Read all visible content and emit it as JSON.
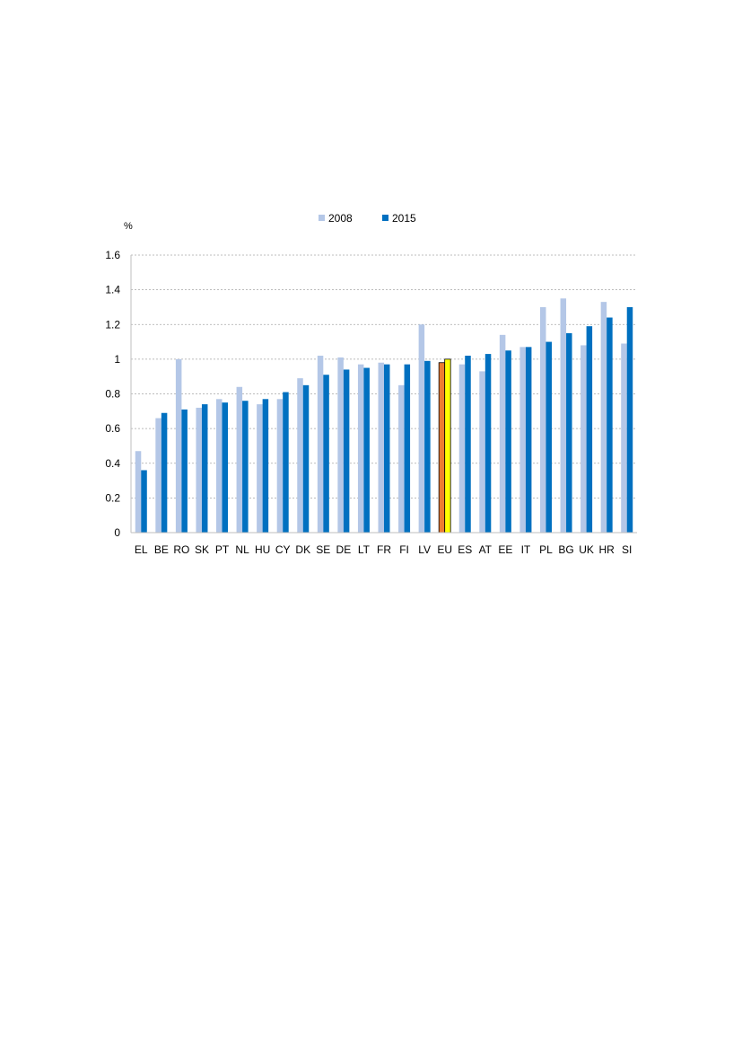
{
  "chart_data": {
    "type": "bar",
    "ylabel": "%",
    "ylim": [
      0,
      1.6
    ],
    "yticks": [
      "0",
      "0.2",
      "0.4",
      "0.6",
      "0.8",
      "1",
      "1.2",
      "1.4",
      "1.6"
    ],
    "ytick_values": [
      0,
      0.2,
      0.4,
      0.6,
      0.8,
      1,
      1.2,
      1.4,
      1.6
    ],
    "grid": true,
    "legend_position": "top-center",
    "categories": [
      "EL",
      "BE",
      "RO",
      "SK",
      "PT",
      "NL",
      "HU",
      "CY",
      "DK",
      "SE",
      "DE",
      "LT",
      "FR",
      "FI",
      "LV",
      "EU",
      "ES",
      "AT",
      "EE",
      "IT",
      "PL",
      "BG",
      "UK",
      "HR",
      "SI"
    ],
    "series": [
      {
        "name": "2008",
        "color": "#b4c7e7",
        "values": [
          0.47,
          0.66,
          1.0,
          0.72,
          0.77,
          0.84,
          0.74,
          0.77,
          0.89,
          1.02,
          1.01,
          0.97,
          0.98,
          0.85,
          1.2,
          0.98,
          0.97,
          0.93,
          1.14,
          1.07,
          1.3,
          1.35,
          1.08,
          1.33,
          1.09
        ]
      },
      {
        "name": "2015",
        "color": "#0070c0",
        "values": [
          0.36,
          0.69,
          0.71,
          0.74,
          0.75,
          0.76,
          0.77,
          0.81,
          0.85,
          0.91,
          0.94,
          0.95,
          0.97,
          0.97,
          0.99,
          1.0,
          1.02,
          1.03,
          1.05,
          1.07,
          1.1,
          1.15,
          1.19,
          1.24,
          1.3
        ]
      }
    ],
    "highlight": {
      "category": "EU",
      "colors": [
        "#ed7d31",
        "#ffff00"
      ]
    }
  }
}
